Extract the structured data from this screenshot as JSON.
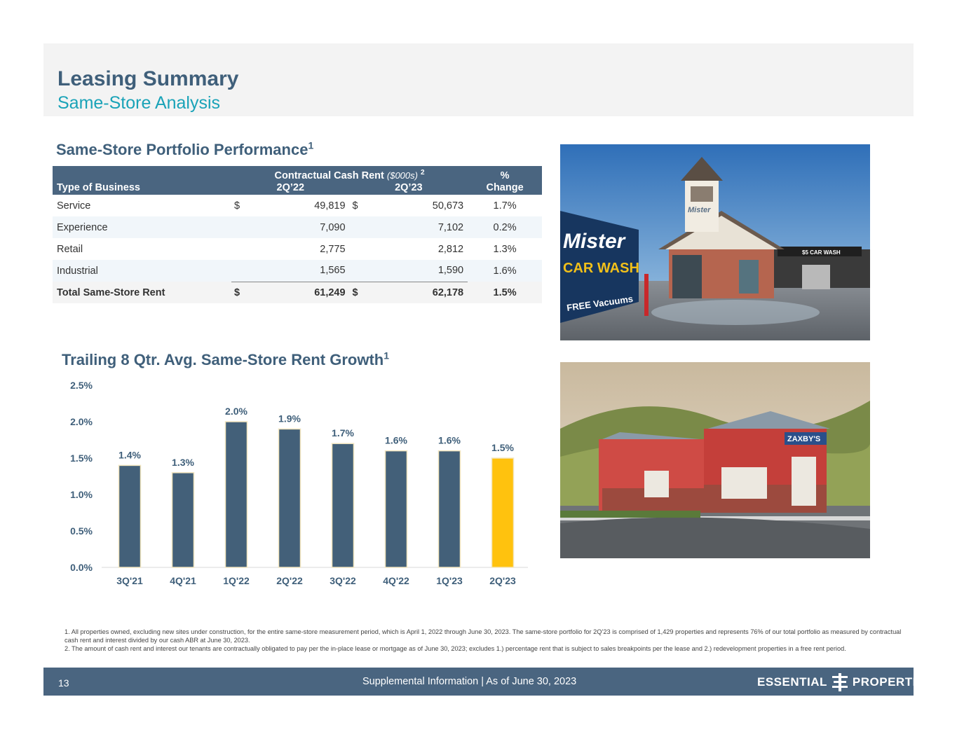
{
  "header": {
    "title": "Leasing Summary",
    "subtitle": "Same-Store Analysis"
  },
  "table": {
    "title": "Same-Store Portfolio Performance",
    "title_sup": "1",
    "group_header": "Contractual Cash Rent",
    "group_unit": "($000s)",
    "group_sup": "2",
    "col_business": "Type of Business",
    "col_2q22": "2Q’22",
    "col_2q23": "2Q’23",
    "col_change_top": "%",
    "col_change_bottom": "Change",
    "rows": [
      {
        "business": "Service",
        "cur1": "$",
        "v1": "49,819",
        "cur2": "$",
        "v2": "50,673",
        "change": "1.7%"
      },
      {
        "business": "Experience",
        "cur1": "",
        "v1": "7,090",
        "cur2": "",
        "v2": "7,102",
        "change": "0.2%"
      },
      {
        "business": "Retail",
        "cur1": "",
        "v1": "2,775",
        "cur2": "",
        "v2": "2,812",
        "change": "1.3%"
      },
      {
        "business": "Industrial",
        "cur1": "",
        "v1": "1,565",
        "cur2": "",
        "v2": "1,590",
        "change": "1.6%"
      }
    ],
    "total": {
      "business": "Total Same-Store Rent",
      "cur1": "$",
      "v1": "61,249",
      "cur2": "$",
      "v2": "62,178",
      "change": "1.5%"
    }
  },
  "chart_data": {
    "type": "bar",
    "title": "Trailing 8 Qtr. Avg. Same-Store Rent Growth",
    "title_sup": "1",
    "categories": [
      "3Q'21",
      "4Q'21",
      "1Q'22",
      "2Q'22",
      "3Q'22",
      "4Q'22",
      "1Q'23",
      "2Q'23"
    ],
    "values": [
      1.4,
      1.3,
      2.0,
      1.9,
      1.7,
      1.6,
      1.6,
      1.5
    ],
    "value_labels": [
      "1.4%",
      "1.3%",
      "2.0%",
      "1.9%",
      "1.7%",
      "1.6%",
      "1.6%",
      "1.5%"
    ],
    "y_ticks": [
      "0.0%",
      "0.5%",
      "1.0%",
      "1.5%",
      "2.0%",
      "2.5%"
    ],
    "ylim": [
      0,
      2.5
    ],
    "grid": false,
    "colors": {
      "bar": "#436079",
      "highlight": "#ffc20e",
      "outline": "#f3e6c0",
      "label": "#3f5f7a"
    }
  },
  "photos": {
    "carwash_sign_1": "Mister",
    "carwash_sign_2": "CAR WASH",
    "carwash_sign_3": "FREE Vacuums",
    "carwash_tower": "Mister",
    "carwash_side": "$5 CAR WASH",
    "zaxbys_sign": "ZAXBY'S"
  },
  "footnotes": [
    "1. All properties owned, excluding new sites under construction, for the entire same-store measurement period, which is April 1, 2022 through June 30, 2023. The same-store portfolio for 2Q’23 is comprised of 1,429 properties and represents 76% of our total portfolio as measured by contractual cash rent and interest divided by our cash ABR at June 30, 2023.",
    "2. The amount of cash rent and interest our tenants are contractually obligated to pay per the in-place lease or mortgage as of June 30, 2023; excludes 1.) percentage rent that is subject to sales breakpoints per the lease and 2.) redevelopment properties in a free rent period."
  ],
  "footer": {
    "page_number": "13",
    "text": "Supplemental Information |  As of June 30, 2023",
    "logo_left": "ESSENTIAL",
    "logo_right": "PROPERTIES"
  }
}
